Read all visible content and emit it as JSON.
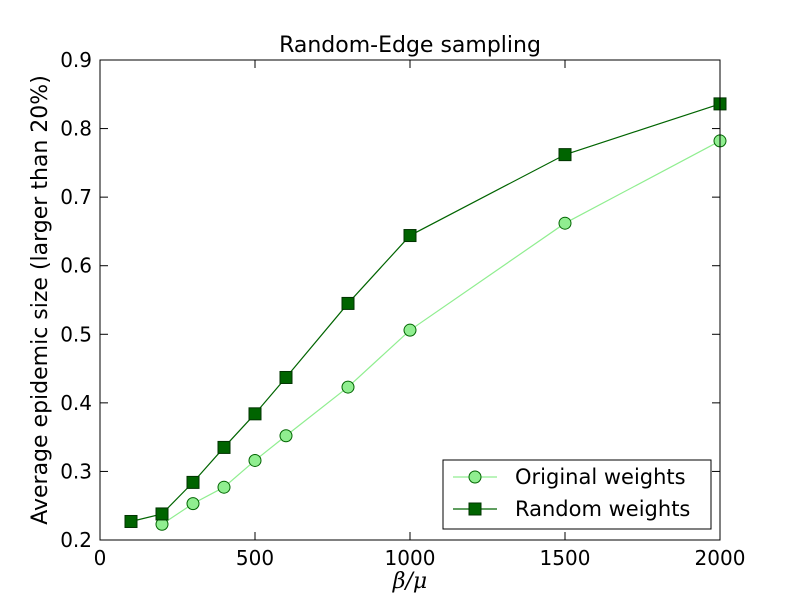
{
  "chart_data": {
    "type": "line",
    "title": "Random-Edge sampling",
    "xlabel": "β/μ",
    "ylabel": "Average epidemic size (larger than 20%)",
    "xlim": [
      0,
      2000
    ],
    "ylim": [
      0.2,
      0.9
    ],
    "x_ticks": [
      0,
      500,
      1000,
      1500,
      2000
    ],
    "y_ticks": [
      0.2,
      0.3,
      0.4,
      0.5,
      0.6,
      0.7,
      0.8,
      0.9
    ],
    "grid": false,
    "legend_position": "lower-right",
    "series": [
      {
        "name": "Original weights",
        "marker": "circle",
        "color": "#90ee90",
        "edge_color": "#006400",
        "x": [
          200,
          300,
          400,
          500,
          600,
          800,
          1000,
          1500,
          2000
        ],
        "y": [
          0.223,
          0.253,
          0.277,
          0.316,
          0.352,
          0.423,
          0.506,
          0.662,
          0.782
        ]
      },
      {
        "name": "Random weights",
        "marker": "square",
        "color": "#006400",
        "edge_color": "#003300",
        "x": [
          100,
          200,
          300,
          400,
          500,
          600,
          800,
          1000,
          1500,
          2000
        ],
        "y": [
          0.227,
          0.238,
          0.284,
          0.335,
          0.384,
          0.437,
          0.545,
          0.644,
          0.762,
          0.836
        ]
      }
    ]
  }
}
